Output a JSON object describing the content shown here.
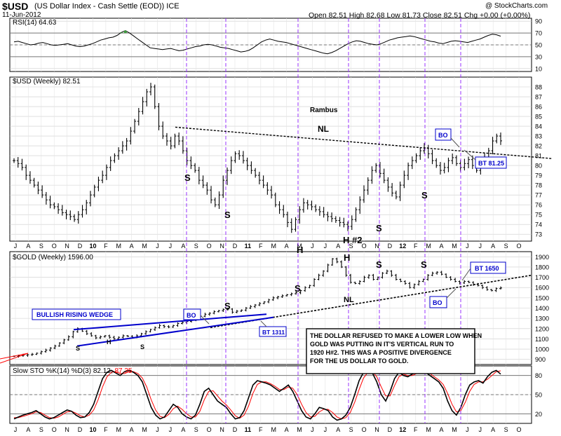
{
  "header": {
    "symbol": "$USD",
    "description": "(US Dollar Index - Cash Settle (EOD)) ICE",
    "date": "11-Jun-2012",
    "copyright": "@ StockCharts.com",
    "quote": "Open 82.51  High 82.68  Low 81.73  Close 82.51  Chg +0.00 (+0.00%)"
  },
  "colors": {
    "price_bar": "#000000",
    "grid": "#cccccc",
    "vline": "#9933ff",
    "trend_blue": "#0000cc",
    "text_blue": "#0000cc",
    "stoch_d": "#ff0000",
    "rsi_fill": "#3c9a3c"
  },
  "chart_data": [
    {
      "type": "line",
      "panel": "rsi",
      "legend": "RSI(14) 64.63",
      "yticks": [
        10,
        30,
        50,
        70,
        90
      ],
      "ylim": [
        5,
        95
      ],
      "levels": [
        30,
        50,
        70
      ],
      "values": [
        55,
        56,
        54,
        52,
        50,
        51,
        53,
        54,
        52,
        50,
        49,
        50,
        51,
        52,
        50,
        48,
        47,
        48,
        50,
        52,
        55,
        58,
        60,
        62,
        63,
        66,
        71,
        74,
        70,
        65,
        60,
        55,
        50,
        45,
        44,
        43,
        42,
        43,
        44,
        42,
        40,
        41,
        43,
        45,
        47,
        48,
        50,
        51,
        50,
        48,
        46,
        45,
        44,
        42,
        40,
        38,
        39,
        41,
        45,
        50,
        55,
        58,
        60,
        58,
        56,
        55,
        54,
        52,
        50,
        48,
        46,
        44,
        42,
        40,
        38,
        36,
        35,
        37,
        40,
        44,
        48,
        52,
        55,
        57,
        56,
        54,
        52,
        51,
        50,
        52,
        55,
        58,
        60,
        62,
        63,
        64,
        65,
        64,
        62,
        60,
        58,
        56,
        55,
        53,
        52,
        54,
        56,
        57,
        56,
        55,
        54,
        56,
        58,
        60,
        63,
        66,
        68,
        67,
        64.63
      ]
    },
    {
      "type": "ohlc",
      "panel": "usd",
      "legend": "$USD (Weekly) 82.51",
      "yticks": [
        73,
        74,
        75,
        76,
        77,
        78,
        79,
        80,
        81,
        82,
        83,
        84,
        85,
        86,
        87,
        88
      ],
      "ylim": [
        72.3,
        89
      ],
      "close": [
        80.5,
        80.2,
        79.8,
        79,
        78.5,
        78,
        77.5,
        77,
        76.5,
        76,
        75.8,
        75.5,
        75.2,
        75,
        74.8,
        74.5,
        75,
        75.5,
        76.2,
        77,
        77.8,
        78.5,
        79,
        79.8,
        80.5,
        81,
        81.5,
        82,
        82.5,
        83.5,
        84.5,
        85.5,
        86.5,
        87.5,
        88,
        86,
        84,
        83,
        82.5,
        82,
        83,
        82.5,
        81.5,
        80.5,
        80,
        79.5,
        78.5,
        78,
        77.5,
        76.5,
        76,
        77,
        78.5,
        79.5,
        80.5,
        81.2,
        81,
        80.5,
        80,
        79.5,
        79,
        78.5,
        78,
        77.5,
        77,
        76,
        75.5,
        75,
        74.2,
        73.5,
        74.5,
        75.5,
        76.2,
        76,
        75.8,
        75.5,
        75.3,
        75,
        74.8,
        74.6,
        74.4,
        74.2,
        74,
        73.8,
        74.5,
        75.5,
        76.5,
        77.5,
        78.5,
        79.5,
        80,
        79.2,
        78.5,
        77.8,
        77.2,
        76.8,
        78,
        79,
        80,
        80.5,
        81,
        81.5,
        81.8,
        81.2,
        80.5,
        80,
        79.5,
        79.8,
        80.5,
        80.8,
        80.2,
        79.8,
        80.2,
        80.6,
        80,
        79.5,
        80,
        80.8,
        81.5,
        82.5,
        83,
        82.51
      ],
      "annotations": [
        "Rambus",
        "NL",
        "BO",
        "BT 81.25",
        "S",
        "S",
        "S",
        "S",
        "S",
        "H",
        "H #2"
      ],
      "xlabels": [
        "J",
        "A",
        "S",
        "O",
        "N",
        "D",
        "10",
        "F",
        "M",
        "A",
        "M",
        "J",
        "J",
        "A",
        "S",
        "O",
        "N",
        "D",
        "11",
        "F",
        "M",
        "A",
        "M",
        "J",
        "J",
        "A",
        "S",
        "O",
        "N",
        "D",
        "12",
        "F",
        "M",
        "A",
        "M",
        "J",
        "J",
        "A",
        "S",
        "O"
      ]
    },
    {
      "type": "ohlc",
      "panel": "gold",
      "legend": "$GOLD (Weekly) 1596.00",
      "yticks": [
        900,
        1000,
        1100,
        1200,
        1300,
        1400,
        1500,
        1600,
        1700,
        1800,
        1900
      ],
      "ylim": [
        850,
        1950
      ],
      "close": [
        930,
        935,
        940,
        945,
        950,
        960,
        975,
        990,
        1010,
        1030,
        1060,
        1090,
        1120,
        1170,
        1200,
        1175,
        1150,
        1130,
        1110,
        1120,
        1130,
        1115,
        1100,
        1115,
        1130,
        1125,
        1115,
        1130,
        1150,
        1170,
        1190,
        1210,
        1230,
        1220,
        1215,
        1230,
        1250,
        1260,
        1270,
        1280,
        1300,
        1320,
        1340,
        1350,
        1365,
        1375,
        1385,
        1390,
        1360,
        1370,
        1380,
        1400,
        1415,
        1430,
        1445,
        1460,
        1480,
        1500,
        1510,
        1520,
        1530,
        1540,
        1550,
        1570,
        1600,
        1620,
        1680,
        1720,
        1760,
        1820,
        1880,
        1850,
        1800,
        1720,
        1650,
        1640,
        1660,
        1700,
        1720,
        1680,
        1700,
        1740,
        1760,
        1720,
        1680,
        1660,
        1640,
        1600,
        1630,
        1660,
        1680,
        1720,
        1740,
        1750,
        1730,
        1700,
        1680,
        1660,
        1645,
        1660,
        1650,
        1630,
        1620,
        1600,
        1580,
        1570,
        1590,
        1596
      ],
      "annotations": [
        "BULLISH RISING WEDGE",
        "BO",
        "BT 1311",
        "BT 1650",
        "BO",
        "NL",
        "S",
        "S",
        "S",
        "S",
        "S",
        "H",
        "H"
      ],
      "note": "THE DOLLAR REFUSED TO MAKE A LOWER LOW WHEN GOLD WAS PUTTING IN IT'S VERTICAL RUN TO 1920 H#2. THIS WAS A POSITIVE DIVERGENCE FOR THE US DOLLAR TO GOLD."
    },
    {
      "type": "line",
      "panel": "sto",
      "legend_prefix": "Slow STO %K(14) %D(3)",
      "legend_k": "82.12,",
      "legend_d": "87.35",
      "yticks": [
        20,
        50,
        80
      ],
      "ylim": [
        5,
        95
      ],
      "levels": [
        20,
        50,
        80
      ],
      "k": [
        12,
        15,
        18,
        20,
        22,
        25,
        20,
        15,
        12,
        14,
        18,
        22,
        26,
        24,
        18,
        14,
        15,
        22,
        35,
        55,
        75,
        85,
        88,
        84,
        80,
        86,
        88,
        85,
        80,
        70,
        50,
        30,
        18,
        12,
        15,
        25,
        35,
        30,
        20,
        15,
        12,
        18,
        35,
        55,
        60,
        50,
        40,
        35,
        30,
        20,
        12,
        14,
        25,
        45,
        65,
        72,
        70,
        68,
        65,
        60,
        55,
        60,
        65,
        55,
        40,
        25,
        15,
        12,
        20,
        30,
        28,
        25,
        15,
        10,
        12,
        18,
        30,
        50,
        72,
        85,
        88,
        84,
        70,
        50,
        40,
        55,
        75,
        85,
        80,
        78,
        82,
        86,
        88,
        85,
        80,
        75,
        70,
        60,
        40,
        25,
        18,
        30,
        50,
        65,
        70,
        72,
        68,
        78,
        85,
        88,
        82.12
      ],
      "d": [
        14,
        14,
        16,
        18,
        20,
        23,
        22,
        18,
        14,
        13,
        15,
        19,
        23,
        24,
        21,
        17,
        15,
        18,
        26,
        42,
        62,
        78,
        85,
        86,
        83,
        83,
        86,
        86,
        83,
        76,
        62,
        42,
        26,
        16,
        14,
        19,
        28,
        32,
        27,
        20,
        15,
        15,
        24,
        42,
        55,
        56,
        48,
        40,
        34,
        26,
        17,
        13,
        18,
        32,
        52,
        66,
        70,
        70,
        67,
        63,
        58,
        58,
        62,
        60,
        50,
        35,
        22,
        15,
        16,
        23,
        27,
        27,
        22,
        15,
        12,
        14,
        22,
        38,
        58,
        76,
        85,
        86,
        78,
        62,
        48,
        48,
        64,
        78,
        82,
        80,
        80,
        83,
        86,
        86,
        83,
        78,
        73,
        66,
        52,
        35,
        23,
        25,
        38,
        55,
        66,
        70,
        70,
        74,
        80,
        86,
        87.35
      ]
    }
  ]
}
